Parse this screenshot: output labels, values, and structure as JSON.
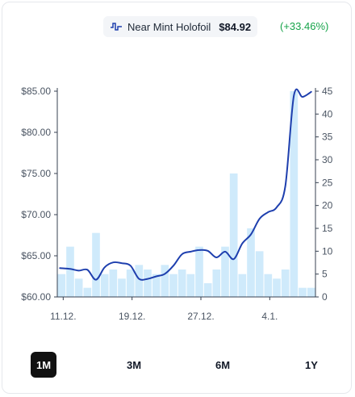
{
  "legend": {
    "name": "Near Mint Holofoil",
    "price": "$84.92",
    "change": "(+33.46%)",
    "line_color": "#1e3fae",
    "change_color": "#16a34a"
  },
  "tabs": [
    {
      "label": "1M",
      "active": true
    },
    {
      "label": "3M",
      "active": false
    },
    {
      "label": "6M",
      "active": false
    },
    {
      "label": "1Y",
      "active": false
    }
  ],
  "chart_data": {
    "type": "line",
    "title": "",
    "x_tick_labels": [
      "11.12.",
      "19.12.",
      "27.12.",
      "4.1."
    ],
    "x_tick_day_index": [
      0,
      8,
      16,
      24
    ],
    "y_left": {
      "ticks": [
        "$60.00",
        "$65.00",
        "$70.00",
        "$75.00",
        "$80.00",
        "$85.00"
      ],
      "min": 60,
      "max": 85
    },
    "y_right": {
      "ticks": [
        "0",
        "5",
        "10",
        "15",
        "20",
        "25",
        "30",
        "35",
        "40",
        "45"
      ],
      "min": 0,
      "max": 45
    },
    "series": [
      {
        "type": "line",
        "color": "#1e3fae",
        "values": [
          63.5,
          63.4,
          63.2,
          63.3,
          62.1,
          63.6,
          64.2,
          64.1,
          63.8,
          62.2,
          62.2,
          62.5,
          62.8,
          63.8,
          65.2,
          65.5,
          65.7,
          65.6,
          64.8,
          65.5,
          64.6,
          66.5,
          67.6,
          69.5,
          70.3,
          70.9,
          73.5,
          84.5,
          84.3,
          84.92
        ]
      },
      {
        "type": "bar",
        "color": "#cfeafb",
        "values": [
          5,
          11,
          4,
          2,
          14,
          5,
          6,
          4,
          6,
          7,
          6,
          5,
          7,
          5,
          6,
          5,
          11,
          3,
          6,
          11,
          27,
          5,
          15,
          10,
          5,
          4,
          6,
          45,
          2,
          2
        ]
      }
    ]
  }
}
